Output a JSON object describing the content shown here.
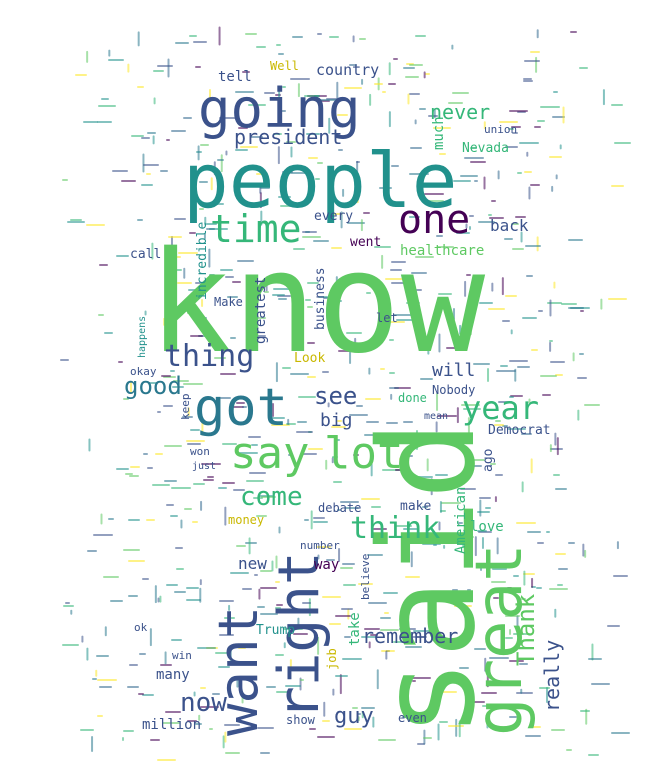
{
  "palette": [
    "#3b528b",
    "#21918c",
    "#5ec962",
    "#440154",
    "#fde725",
    "#2a788e",
    "#35b779",
    "#31688e"
  ],
  "words": [
    {
      "text": "know",
      "color": "#5ec962"
    },
    {
      "text": "said",
      "color": "#5ec962"
    },
    {
      "text": "people",
      "color": "#21918c"
    },
    {
      "text": "going",
      "color": "#3b528b"
    },
    {
      "text": "great",
      "color": "#5ec962"
    },
    {
      "text": "right",
      "color": "#3b528b"
    },
    {
      "text": "want",
      "color": "#3b528b"
    },
    {
      "text": "got",
      "color": "#2a788e"
    },
    {
      "text": "say",
      "color": "#5ec962"
    },
    {
      "text": "lot",
      "color": "#5ec962"
    },
    {
      "text": "one",
      "color": "#440154"
    },
    {
      "text": "time",
      "color": "#35b779"
    },
    {
      "text": "thing",
      "color": "#3b528b"
    },
    {
      "text": "year",
      "color": "#35b779"
    },
    {
      "text": "think",
      "color": "#35b779"
    },
    {
      "text": "come",
      "color": "#35b779"
    },
    {
      "text": "good",
      "color": "#2a788e"
    },
    {
      "text": "see",
      "color": "#3b528b"
    },
    {
      "text": "now",
      "color": "#3b528b"
    },
    {
      "text": "president",
      "color": "#3b528b"
    },
    {
      "text": "never",
      "color": "#35b779"
    },
    {
      "text": "remember",
      "color": "#3b528b"
    },
    {
      "text": "Thank",
      "color": "#5ec962"
    },
    {
      "text": "really",
      "color": "#3b528b"
    },
    {
      "text": "guy",
      "color": "#3b528b"
    },
    {
      "text": "big",
      "color": "#3b528b"
    },
    {
      "text": "will",
      "color": "#3b528b"
    },
    {
      "text": "country",
      "color": "#3b528b"
    },
    {
      "text": "tell",
      "color": "#3b528b"
    },
    {
      "text": "Well",
      "color": "#fde725"
    },
    {
      "text": "much",
      "color": "#35b779"
    },
    {
      "text": "back",
      "color": "#3b528b"
    },
    {
      "text": "healthcare",
      "color": "#5ec962"
    },
    {
      "text": "Nevada",
      "color": "#35b779"
    },
    {
      "text": "union",
      "color": "#3b528b"
    },
    {
      "text": "every",
      "color": "#3b528b"
    },
    {
      "text": "went",
      "color": "#440154"
    },
    {
      "text": "incredible",
      "color": "#21918c"
    },
    {
      "text": "call",
      "color": "#3b528b"
    },
    {
      "text": "business",
      "color": "#3b528b"
    },
    {
      "text": "greatest",
      "color": "#3b528b"
    },
    {
      "text": "Make",
      "color": "#3b528b"
    },
    {
      "text": "Look",
      "color": "#fde725"
    },
    {
      "text": "Nobody",
      "color": "#3b528b"
    },
    {
      "text": "Democrat",
      "color": "#3b528b"
    },
    {
      "text": "done",
      "color": "#35b779"
    },
    {
      "text": "American",
      "color": "#35b779"
    },
    {
      "text": "make",
      "color": "#3b528b"
    },
    {
      "text": "debate",
      "color": "#3b528b"
    },
    {
      "text": "love",
      "color": "#35b779"
    },
    {
      "text": "money",
      "color": "#fde725"
    },
    {
      "text": "new",
      "color": "#3b528b"
    },
    {
      "text": "way",
      "color": "#440154"
    },
    {
      "text": "take",
      "color": "#35b779"
    },
    {
      "text": "Trump",
      "color": "#21918c"
    },
    {
      "text": "many",
      "color": "#3b528b"
    },
    {
      "text": "million",
      "color": "#3b528b"
    },
    {
      "text": "show",
      "color": "#3b528b"
    },
    {
      "text": "even",
      "color": "#3b528b"
    },
    {
      "text": "keep",
      "color": "#3b528b"
    },
    {
      "text": "won",
      "color": "#3b528b"
    },
    {
      "text": "let",
      "color": "#3b528b"
    },
    {
      "text": "happens",
      "color": "#21918c"
    },
    {
      "text": "just",
      "color": "#3b528b"
    },
    {
      "text": "ago",
      "color": "#3b528b"
    },
    {
      "text": "number",
      "color": "#3b528b"
    },
    {
      "text": "job",
      "color": "#fde725"
    },
    {
      "text": "okay",
      "color": "#3b528b"
    },
    {
      "text": "believe",
      "color": "#3b528b"
    },
    {
      "text": "win",
      "color": "#3b528b"
    },
    {
      "text": "mean",
      "color": "#3b528b"
    },
    {
      "text": "ok",
      "color": "#3b528b"
    }
  ]
}
